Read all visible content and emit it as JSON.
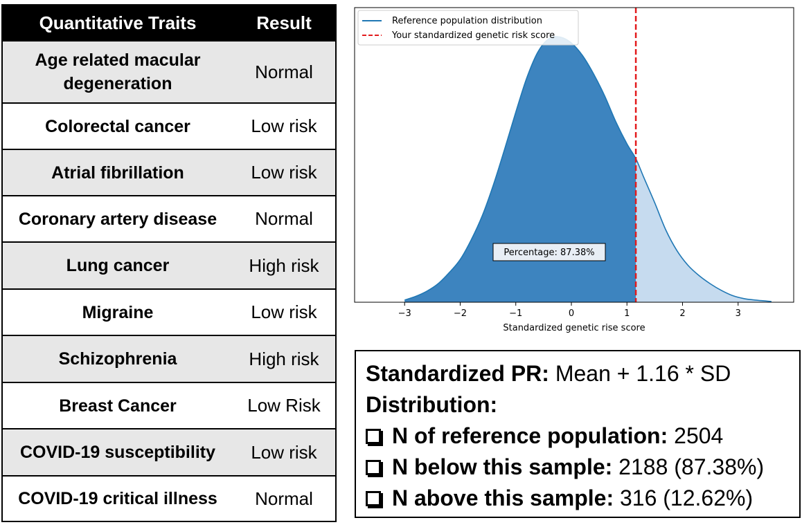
{
  "table": {
    "header_trait": "Quantitative Traits",
    "header_result": "Result",
    "rows": [
      {
        "trait": "Age related macular degeneration",
        "result": "Normal"
      },
      {
        "trait": "Colorectal cancer",
        "result": "Low risk"
      },
      {
        "trait": "Atrial fibrillation",
        "result": "Low risk"
      },
      {
        "trait": "Coronary artery disease",
        "result": "Normal"
      },
      {
        "trait": "Lung cancer",
        "result": "High risk"
      },
      {
        "trait": "Migraine",
        "result": "Low risk"
      },
      {
        "trait": "Schizophrenia",
        "result": "High risk"
      },
      {
        "trait": "Breast Cancer",
        "result": "Low Risk"
      },
      {
        "trait": "COVID-19 susceptibility",
        "result": "Low risk"
      },
      {
        "trait": "COVID-19 critical illness",
        "result": "Normal"
      }
    ]
  },
  "chart_data": {
    "type": "area",
    "xlabel": "Standardized genetic rise score",
    "ylabel": "",
    "xlim": [
      -3.9,
      4.0
    ],
    "ylim": [
      0,
      0.4
    ],
    "xticks": [
      -3,
      -2,
      -1,
      0,
      1,
      2,
      3
    ],
    "xtick_labels": [
      "−3",
      "−2",
      "−1",
      "0",
      "1",
      "2",
      "3"
    ],
    "legend_position": "top-left",
    "legend": [
      {
        "label": "Reference population distribution",
        "color": "#1f77b4",
        "style": "solid"
      },
      {
        "label": "Your standardized genetic risk score",
        "color": "#e31a1c",
        "style": "dashed"
      }
    ],
    "marker_x": 1.16,
    "annotation": "Percentage: 87.38%",
    "series": [
      {
        "x": [
          -3.0,
          -2.8,
          -2.6,
          -2.4,
          -2.2,
          -2.0,
          -1.8,
          -1.6,
          -1.4,
          -1.2,
          -1.0,
          -0.8,
          -0.6,
          -0.4,
          -0.2,
          0.0,
          0.2,
          0.4,
          0.6,
          0.8,
          1.0,
          1.16,
          1.3,
          1.5,
          1.7,
          1.9,
          2.1,
          2.3,
          2.5,
          2.7,
          2.9,
          3.1,
          3.3,
          3.6
        ],
        "y": [
          0.003,
          0.008,
          0.015,
          0.025,
          0.04,
          0.058,
          0.085,
          0.118,
          0.16,
          0.208,
          0.258,
          0.305,
          0.34,
          0.358,
          0.36,
          0.352,
          0.335,
          0.31,
          0.28,
          0.245,
          0.215,
          0.195,
          0.17,
          0.135,
          0.098,
          0.07,
          0.05,
          0.036,
          0.025,
          0.016,
          0.009,
          0.005,
          0.003,
          0.001
        ]
      }
    ],
    "colors": {
      "line": "#1f77b4",
      "fill_below": "#3d84bf",
      "fill_above": "#c6dbef",
      "marker": "#e31a1c"
    }
  },
  "info": {
    "pr_label": "Standardized PR:",
    "pr_value": "Mean + 1.16 * SD",
    "dist_label": "Distribution:",
    "items": [
      {
        "label": "N of reference population:",
        "value": "2504"
      },
      {
        "label": "N below this sample:",
        "value": "2188 (87.38%)"
      },
      {
        "label": "N above this sample:",
        "value": "316 (12.62%)"
      }
    ]
  }
}
